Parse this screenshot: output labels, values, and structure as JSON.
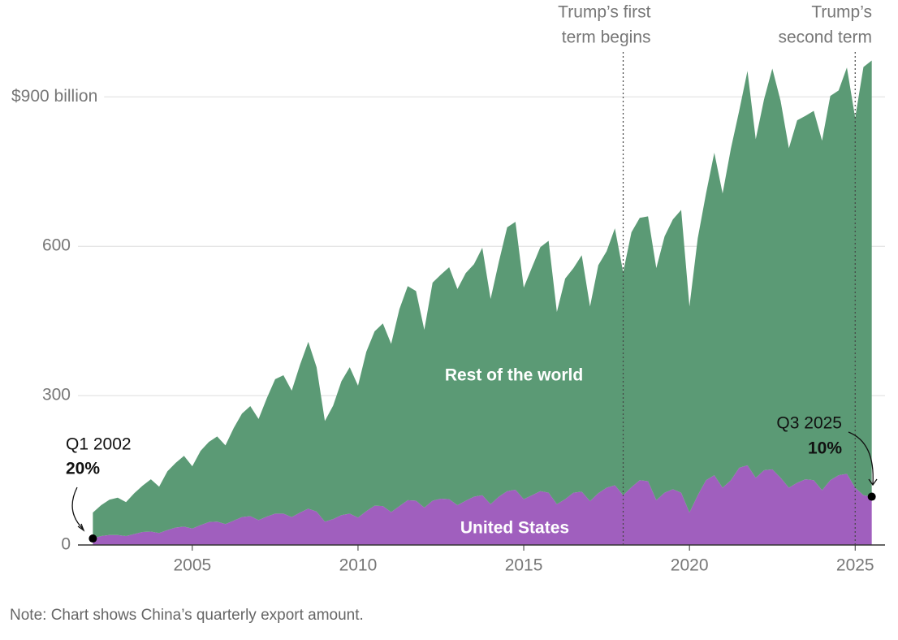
{
  "chart_data": {
    "type": "stacked-area",
    "x": [
      2002,
      2002.25,
      2002.5,
      2002.75,
      2003,
      2003.25,
      2003.5,
      2003.75,
      2004,
      2004.25,
      2004.5,
      2004.75,
      2005,
      2005.25,
      2005.5,
      2005.75,
      2006,
      2006.25,
      2006.5,
      2006.75,
      2007,
      2007.25,
      2007.5,
      2007.75,
      2008,
      2008.25,
      2008.5,
      2008.75,
      2009,
      2009.25,
      2009.5,
      2009.75,
      2010,
      2010.25,
      2010.5,
      2010.75,
      2011,
      2011.25,
      2011.5,
      2011.75,
      2012,
      2012.25,
      2012.5,
      2012.75,
      2013,
      2013.25,
      2013.5,
      2013.75,
      2014,
      2014.25,
      2014.5,
      2014.75,
      2015,
      2015.25,
      2015.5,
      2015.75,
      2016,
      2016.25,
      2016.5,
      2016.75,
      2017,
      2017.25,
      2017.5,
      2017.75,
      2018,
      2018.25,
      2018.5,
      2018.75,
      2019,
      2019.25,
      2019.5,
      2019.75,
      2020,
      2020.25,
      2020.5,
      2020.75,
      2021,
      2021.25,
      2021.5,
      2021.75,
      2022,
      2022.25,
      2022.5,
      2022.75,
      2023,
      2023.25,
      2023.5,
      2023.75,
      2024,
      2024.25,
      2024.5,
      2024.75,
      2025,
      2025.25,
      2025.5
    ],
    "series": [
      {
        "name": "United States",
        "color": "#a05fbe",
        "values": [
          13,
          18,
          20,
          20,
          18,
          22,
          26,
          27,
          24,
          30,
          35,
          37,
          33,
          40,
          46,
          47,
          42,
          49,
          56,
          58,
          50,
          57,
          63,
          63,
          56,
          65,
          73,
          67,
          47,
          52,
          60,
          63,
          55,
          68,
          79,
          78,
          66,
          78,
          90,
          89,
          75,
          89,
          93,
          92,
          80,
          89,
          97,
          100,
          82,
          97,
          108,
          111,
          92,
          100,
          108,
          105,
          82,
          92,
          105,
          107,
          88,
          104,
          115,
          120,
          100,
          116,
          130,
          128,
          90,
          105,
          112,
          105,
          65,
          100,
          130,
          140,
          115,
          130,
          155,
          160,
          135,
          150,
          152,
          135,
          115,
          125,
          132,
          130,
          110,
          130,
          140,
          143,
          115,
          100,
          97
        ]
      },
      {
        "name": "Rest of the world",
        "color": "#5b9a75",
        "values": [
          52,
          62,
          71,
          75,
          68,
          82,
          93,
          105,
          93,
          118,
          130,
          142,
          125,
          149,
          161,
          171,
          158,
          186,
          208,
          221,
          203,
          238,
          270,
          278,
          254,
          297,
          335,
          290,
          202,
          228,
          269,
          294,
          265,
          320,
          350,
          367,
          338,
          396,
          430,
          421,
          357,
          438,
          450,
          466,
          434,
          457,
          467,
          497,
          412,
          472,
          530,
          538,
          425,
          458,
          490,
          506,
          386,
          443,
          451,
          475,
          391,
          458,
          475,
          516,
          448,
          512,
          527,
          532,
          466,
          515,
          542,
          568,
          414,
          516,
          576,
          648,
          591,
          666,
          717,
          792,
          680,
          745,
          805,
          757,
          682,
          728,
          730,
          742,
          702,
          772,
          773,
          816,
          743,
          860,
          876
        ]
      }
    ],
    "xlim": [
      2001.55,
      2025.9
    ],
    "xticks": [
      2005,
      2010,
      2015,
      2020,
      2025
    ],
    "ylim": [
      0,
      1000
    ],
    "yticks": [
      0,
      300,
      600,
      {
        "value": 900,
        "label": "$900 billion"
      }
    ],
    "grid": true,
    "events": [
      {
        "x": 2018,
        "lines": [
          "Trump’s first",
          "term begins"
        ]
      },
      {
        "x": 2025,
        "lines": [
          "Trump’s",
          "second term"
        ]
      }
    ],
    "callouts": [
      {
        "lines": [
          "Q1 2002",
          "20%"
        ]
      },
      {
        "lines": [
          "Q3 2025",
          "10%"
        ]
      }
    ],
    "note": "Note: Chart shows China’s quarterly export amount."
  }
}
